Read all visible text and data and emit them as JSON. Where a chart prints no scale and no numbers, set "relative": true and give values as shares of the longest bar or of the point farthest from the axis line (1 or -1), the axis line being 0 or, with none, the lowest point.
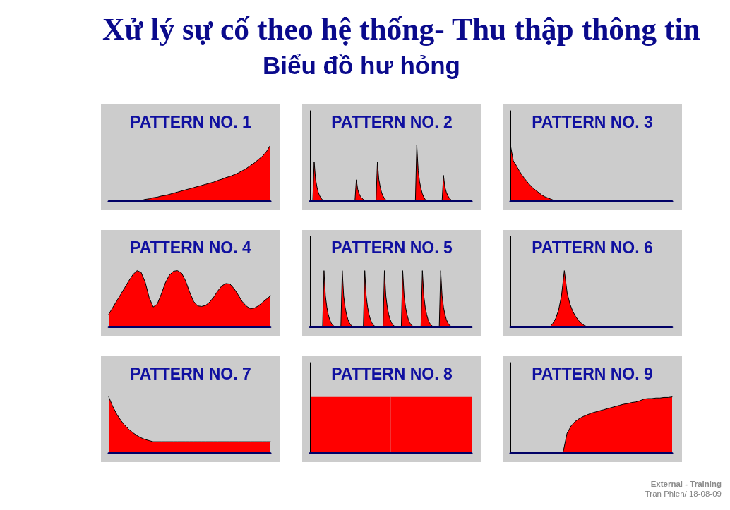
{
  "chart_data": [
    {
      "type": "other",
      "title": "Xử lý sự cố theo hệ thống- Thu thập thông tin",
      "subtitle": "Biểu đồ hư hỏng",
      "annotations": [
        "External - Training",
        "Tran Phien/ 18-08-09"
      ]
    },
    {
      "type": "area",
      "title": "PATTERN NO. 1",
      "relative": true,
      "categories": [
        null,
        null,
        null,
        null,
        null,
        null,
        null,
        null,
        null,
        null,
        null,
        null,
        null,
        null,
        null,
        null,
        null,
        null,
        null,
        null,
        null,
        null,
        null,
        null,
        null,
        null,
        null,
        null,
        null,
        null,
        null,
        null,
        null,
        null,
        null,
        null,
        null,
        null,
        null,
        null,
        null
      ],
      "series": [
        {
          "color": "#ff0000",
          "values": [
            0,
            0,
            0,
            0,
            0,
            0,
            0,
            0,
            0.01,
            0.03,
            0.04,
            0.06,
            0.07,
            0.09,
            0.1,
            0.12,
            0.14,
            0.16,
            0.18,
            0.2,
            0.22,
            0.24,
            0.26,
            0.28,
            0.3,
            0.32,
            0.34,
            0.37,
            0.39,
            0.42,
            0.44,
            0.47,
            0.5,
            0.54,
            0.58,
            0.63,
            0.68,
            0.74,
            0.8,
            0.88,
            1
          ]
        }
      ]
    },
    {
      "type": "area",
      "title": "PATTERN NO. 2",
      "relative": true,
      "categories": [
        null,
        null,
        null,
        null,
        null,
        null,
        null,
        null,
        null,
        null,
        null,
        null,
        null,
        null,
        null,
        null,
        null,
        null,
        null,
        null,
        null,
        null,
        null,
        null,
        null,
        null,
        null,
        null,
        null,
        null,
        null,
        null,
        null,
        null,
        null,
        null,
        null,
        null,
        null,
        null,
        null,
        null,
        null,
        null,
        null,
        null,
        null,
        null,
        null,
        null,
        null,
        null,
        null,
        null,
        null,
        null,
        null,
        null,
        null,
        null,
        null,
        null,
        null,
        null,
        null,
        null,
        null,
        null,
        null,
        null,
        null,
        null,
        null,
        null,
        null,
        null,
        null,
        null,
        null,
        null,
        null,
        null,
        null,
        null,
        null,
        null,
        null,
        null,
        null,
        null,
        null,
        null,
        null,
        null,
        null,
        null,
        null,
        null,
        null,
        null,
        null,
        null,
        null,
        null,
        null,
        null,
        null,
        null,
        null,
        null,
        null,
        null,
        null,
        null,
        null,
        null
      ],
      "series": [
        {
          "color": "#ff0000",
          "values": [
            0,
            0,
            0,
            0.7,
            0.39,
            0.25,
            0.15,
            0.09,
            0.05,
            0.02,
            0,
            0,
            0,
            0,
            0,
            0,
            0,
            0,
            0,
            0,
            0,
            0,
            0,
            0,
            0,
            0,
            0,
            0,
            0,
            0,
            0,
            0,
            0,
            0.38,
            0.21,
            0.13,
            0.08,
            0.05,
            0.03,
            0.01,
            0,
            0,
            0,
            0,
            0,
            0,
            0,
            0,
            0.7,
            0.39,
            0.25,
            0.15,
            0.09,
            0.05,
            0.02,
            0,
            0,
            0,
            0,
            0,
            0,
            0,
            0,
            0,
            0,
            0,
            0,
            0,
            0,
            0,
            0,
            0,
            0,
            0,
            0,
            0,
            1,
            0.55,
            0.35,
            0.22,
            0.13,
            0.07,
            0.03,
            0,
            0,
            0,
            0,
            0,
            0,
            0,
            0,
            0,
            0,
            0,
            0,
            0.46,
            0.25,
            0.16,
            0.1,
            0.06,
            0.03,
            0.01,
            0,
            0,
            0,
            0,
            0,
            0,
            0,
            0,
            0,
            0,
            0,
            0,
            0,
            0
          ]
        }
      ]
    },
    {
      "type": "area",
      "title": "PATTERN NO. 3",
      "relative": true,
      "categories": [
        null,
        null,
        null,
        null,
        null,
        null,
        null,
        null,
        null,
        null,
        null,
        null,
        null,
        null,
        null,
        null,
        null,
        null,
        null,
        null,
        null,
        null,
        null,
        null,
        null,
        null,
        null,
        null,
        null,
        null,
        null,
        null,
        null,
        null,
        null,
        null,
        null,
        null,
        null,
        null,
        null,
        null,
        null,
        null,
        null,
        null,
        null,
        null,
        null,
        null,
        null,
        null,
        null,
        null,
        null,
        null,
        null,
        null
      ],
      "series": [
        {
          "color": "#ff0000",
          "values": [
            1,
            0.72,
            0.64,
            0.55,
            0.47,
            0.4,
            0.34,
            0.28,
            0.23,
            0.19,
            0.15,
            0.11,
            0.08,
            0.06,
            0.04,
            0.02,
            0.01,
            0,
            0,
            0,
            0,
            0,
            0,
            0,
            0,
            0,
            0,
            0,
            0,
            0,
            0,
            0,
            0,
            0,
            0,
            0,
            0,
            0,
            0,
            0,
            0,
            0,
            0,
            0,
            0,
            0,
            0,
            0,
            0,
            0,
            0,
            0,
            0,
            0,
            0,
            0,
            0,
            0
          ]
        }
      ]
    },
    {
      "type": "area",
      "title": "PATTERN NO. 4",
      "relative": true,
      "categories": [
        null,
        null,
        null,
        null,
        null,
        null,
        null,
        null,
        null,
        null,
        null,
        null,
        null,
        null,
        null,
        null,
        null,
        null,
        null,
        null,
        null,
        null,
        null,
        null,
        null,
        null,
        null,
        null,
        null,
        null,
        null,
        null,
        null,
        null,
        null,
        null,
        null,
        null,
        null,
        null,
        null
      ],
      "series": [
        {
          "color": "#ff0000",
          "values": [
            0.22,
            0.34,
            0.46,
            0.58,
            0.7,
            0.82,
            0.93,
            1,
            0.97,
            0.8,
            0.52,
            0.35,
            0.4,
            0.58,
            0.78,
            0.92,
            0.99,
            1,
            0.96,
            0.82,
            0.62,
            0.45,
            0.37,
            0.36,
            0.38,
            0.44,
            0.53,
            0.64,
            0.73,
            0.77,
            0.76,
            0.68,
            0.57,
            0.45,
            0.37,
            0.32,
            0.33,
            0.37,
            0.43,
            0.49,
            0.55
          ]
        }
      ]
    },
    {
      "type": "area",
      "title": "PATTERN NO. 5",
      "relative": true,
      "categories": [
        null,
        null,
        null,
        null,
        null,
        null,
        null,
        null,
        null,
        null,
        null,
        null,
        null,
        null,
        null,
        null,
        null,
        null,
        null,
        null,
        null,
        null,
        null,
        null,
        null,
        null,
        null,
        null,
        null,
        null,
        null,
        null,
        null,
        null,
        null,
        null,
        null,
        null,
        null,
        null,
        null,
        null,
        null,
        null,
        null,
        null,
        null,
        null,
        null,
        null,
        null,
        null,
        null,
        null,
        null,
        null,
        null,
        null,
        null,
        null,
        null,
        null,
        null,
        null,
        null,
        null,
        null,
        null,
        null,
        null,
        null,
        null,
        null,
        null,
        null,
        null,
        null,
        null,
        null,
        null,
        null,
        null,
        null,
        null,
        null,
        null,
        null,
        null,
        null,
        null,
        null,
        null,
        null,
        null,
        null,
        null,
        null,
        null,
        null,
        null,
        null,
        null,
        null,
        null,
        null,
        null,
        null,
        null,
        null,
        null,
        null,
        null,
        null,
        null,
        null,
        null
      ],
      "series": [
        {
          "color": "#ff0000",
          "values": [
            0,
            0,
            0,
            0,
            0,
            0,
            0,
            0,
            0,
            0,
            1,
            0.55,
            0.35,
            0.22,
            0.13,
            0.07,
            0.03,
            0.01,
            0,
            0,
            0,
            0,
            0,
            1,
            0.55,
            0.35,
            0.22,
            0.13,
            0.07,
            0.03,
            0.01,
            0,
            0,
            0,
            0,
            0,
            0,
            0,
            0,
            1,
            0.55,
            0.35,
            0.22,
            0.13,
            0.07,
            0.03,
            0.01,
            0,
            0,
            0,
            0,
            0,
            0,
            1,
            0.55,
            0.35,
            0.22,
            0.13,
            0.07,
            0.03,
            0.01,
            0,
            0,
            0,
            0,
            0,
            1,
            0.55,
            0.35,
            0.22,
            0.13,
            0.07,
            0.03,
            0.01,
            0,
            0,
            0,
            0,
            0,
            0,
            1,
            0.55,
            0.35,
            0.22,
            0.13,
            0.07,
            0.03,
            0.01,
            0,
            0,
            0,
            0,
            0,
            1,
            0.55,
            0.35,
            0.22,
            0.13,
            0.07,
            0.03,
            0.01,
            0,
            0,
            0,
            0,
            0,
            0,
            0,
            0,
            0,
            0,
            0,
            0,
            0,
            0,
            0
          ]
        }
      ]
    },
    {
      "type": "area",
      "title": "PATTERN NO. 6",
      "relative": true,
      "categories": [
        null,
        null,
        null,
        null,
        null,
        null,
        null,
        null,
        null,
        null,
        null,
        null,
        null,
        null,
        null,
        null,
        null,
        null,
        null,
        null,
        null,
        null,
        null,
        null,
        null,
        null,
        null,
        null,
        null,
        null,
        null,
        null,
        null,
        null,
        null,
        null,
        null,
        null,
        null,
        null,
        null,
        null,
        null,
        null,
        null,
        null,
        null,
        null,
        null,
        null,
        null,
        null,
        null,
        null,
        null,
        null,
        null,
        null
      ],
      "series": [
        {
          "color": "#ff0000",
          "values": [
            0,
            0,
            0,
            0,
            0,
            0,
            0,
            0,
            0,
            0,
            0,
            0,
            0,
            0,
            0,
            0.06,
            0.15,
            0.3,
            0.55,
            1,
            0.6,
            0.4,
            0.27,
            0.18,
            0.11,
            0.06,
            0.02,
            0,
            0,
            0,
            0,
            0,
            0,
            0,
            0,
            0,
            0,
            0,
            0,
            0,
            0,
            0,
            0,
            0,
            0,
            0,
            0,
            0,
            0,
            0,
            0,
            0,
            0,
            0,
            0,
            0,
            0,
            0
          ]
        }
      ]
    },
    {
      "type": "area",
      "title": "PATTERN NO. 7",
      "relative": true,
      "categories": [
        null,
        null,
        null,
        null,
        null,
        null,
        null,
        null,
        null,
        null,
        null,
        null,
        null,
        null,
        null,
        null,
        null,
        null,
        null,
        null,
        null,
        null,
        null,
        null,
        null,
        null,
        null,
        null,
        null,
        null,
        null,
        null,
        null,
        null,
        null,
        null,
        null,
        null,
        null,
        null,
        null
      ],
      "series": [
        {
          "color": "#ff0000",
          "values": [
            1,
            0.83,
            0.69,
            0.58,
            0.49,
            0.42,
            0.36,
            0.31,
            0.27,
            0.24,
            0.22,
            0.2,
            0.2,
            0.2,
            0.2,
            0.2,
            0.2,
            0.2,
            0.2,
            0.2,
            0.2,
            0.2,
            0.2,
            0.2,
            0.2,
            0.2,
            0.2,
            0.2,
            0.2,
            0.2,
            0.2,
            0.2,
            0.2,
            0.2,
            0.2,
            0.2,
            0.2,
            0.2,
            0.2,
            0.2,
            0.2
          ]
        }
      ]
    },
    {
      "type": "bar",
      "title": "PATTERN NO. 8",
      "relative": true,
      "categories": [
        null,
        null
      ],
      "series": [
        {
          "color": "#ff0000",
          "values": [
            1,
            1
          ]
        }
      ]
    },
    {
      "type": "area",
      "title": "PATTERN NO. 9",
      "relative": true,
      "categories": [
        null,
        null,
        null,
        null,
        null,
        null,
        null,
        null,
        null,
        null,
        null,
        null,
        null,
        null,
        null,
        null,
        null,
        null,
        null,
        null,
        null,
        null,
        null,
        null,
        null,
        null,
        null,
        null,
        null,
        null,
        null,
        null,
        null,
        null,
        null,
        null,
        null,
        null,
        null,
        null,
        null
      ],
      "series": [
        {
          "color": "#ff0000",
          "values": [
            0,
            0,
            0,
            0,
            0,
            0,
            0,
            0,
            0,
            0,
            0,
            0,
            0,
            0,
            0.35,
            0.48,
            0.56,
            0.61,
            0.65,
            0.68,
            0.71,
            0.73,
            0.75,
            0.77,
            0.79,
            0.81,
            0.83,
            0.85,
            0.87,
            0.88,
            0.9,
            0.91,
            0.93,
            0.96,
            0.97,
            0.97,
            0.98,
            0.98,
            0.99,
            0.99,
            1
          ]
        }
      ]
    }
  ]
}
